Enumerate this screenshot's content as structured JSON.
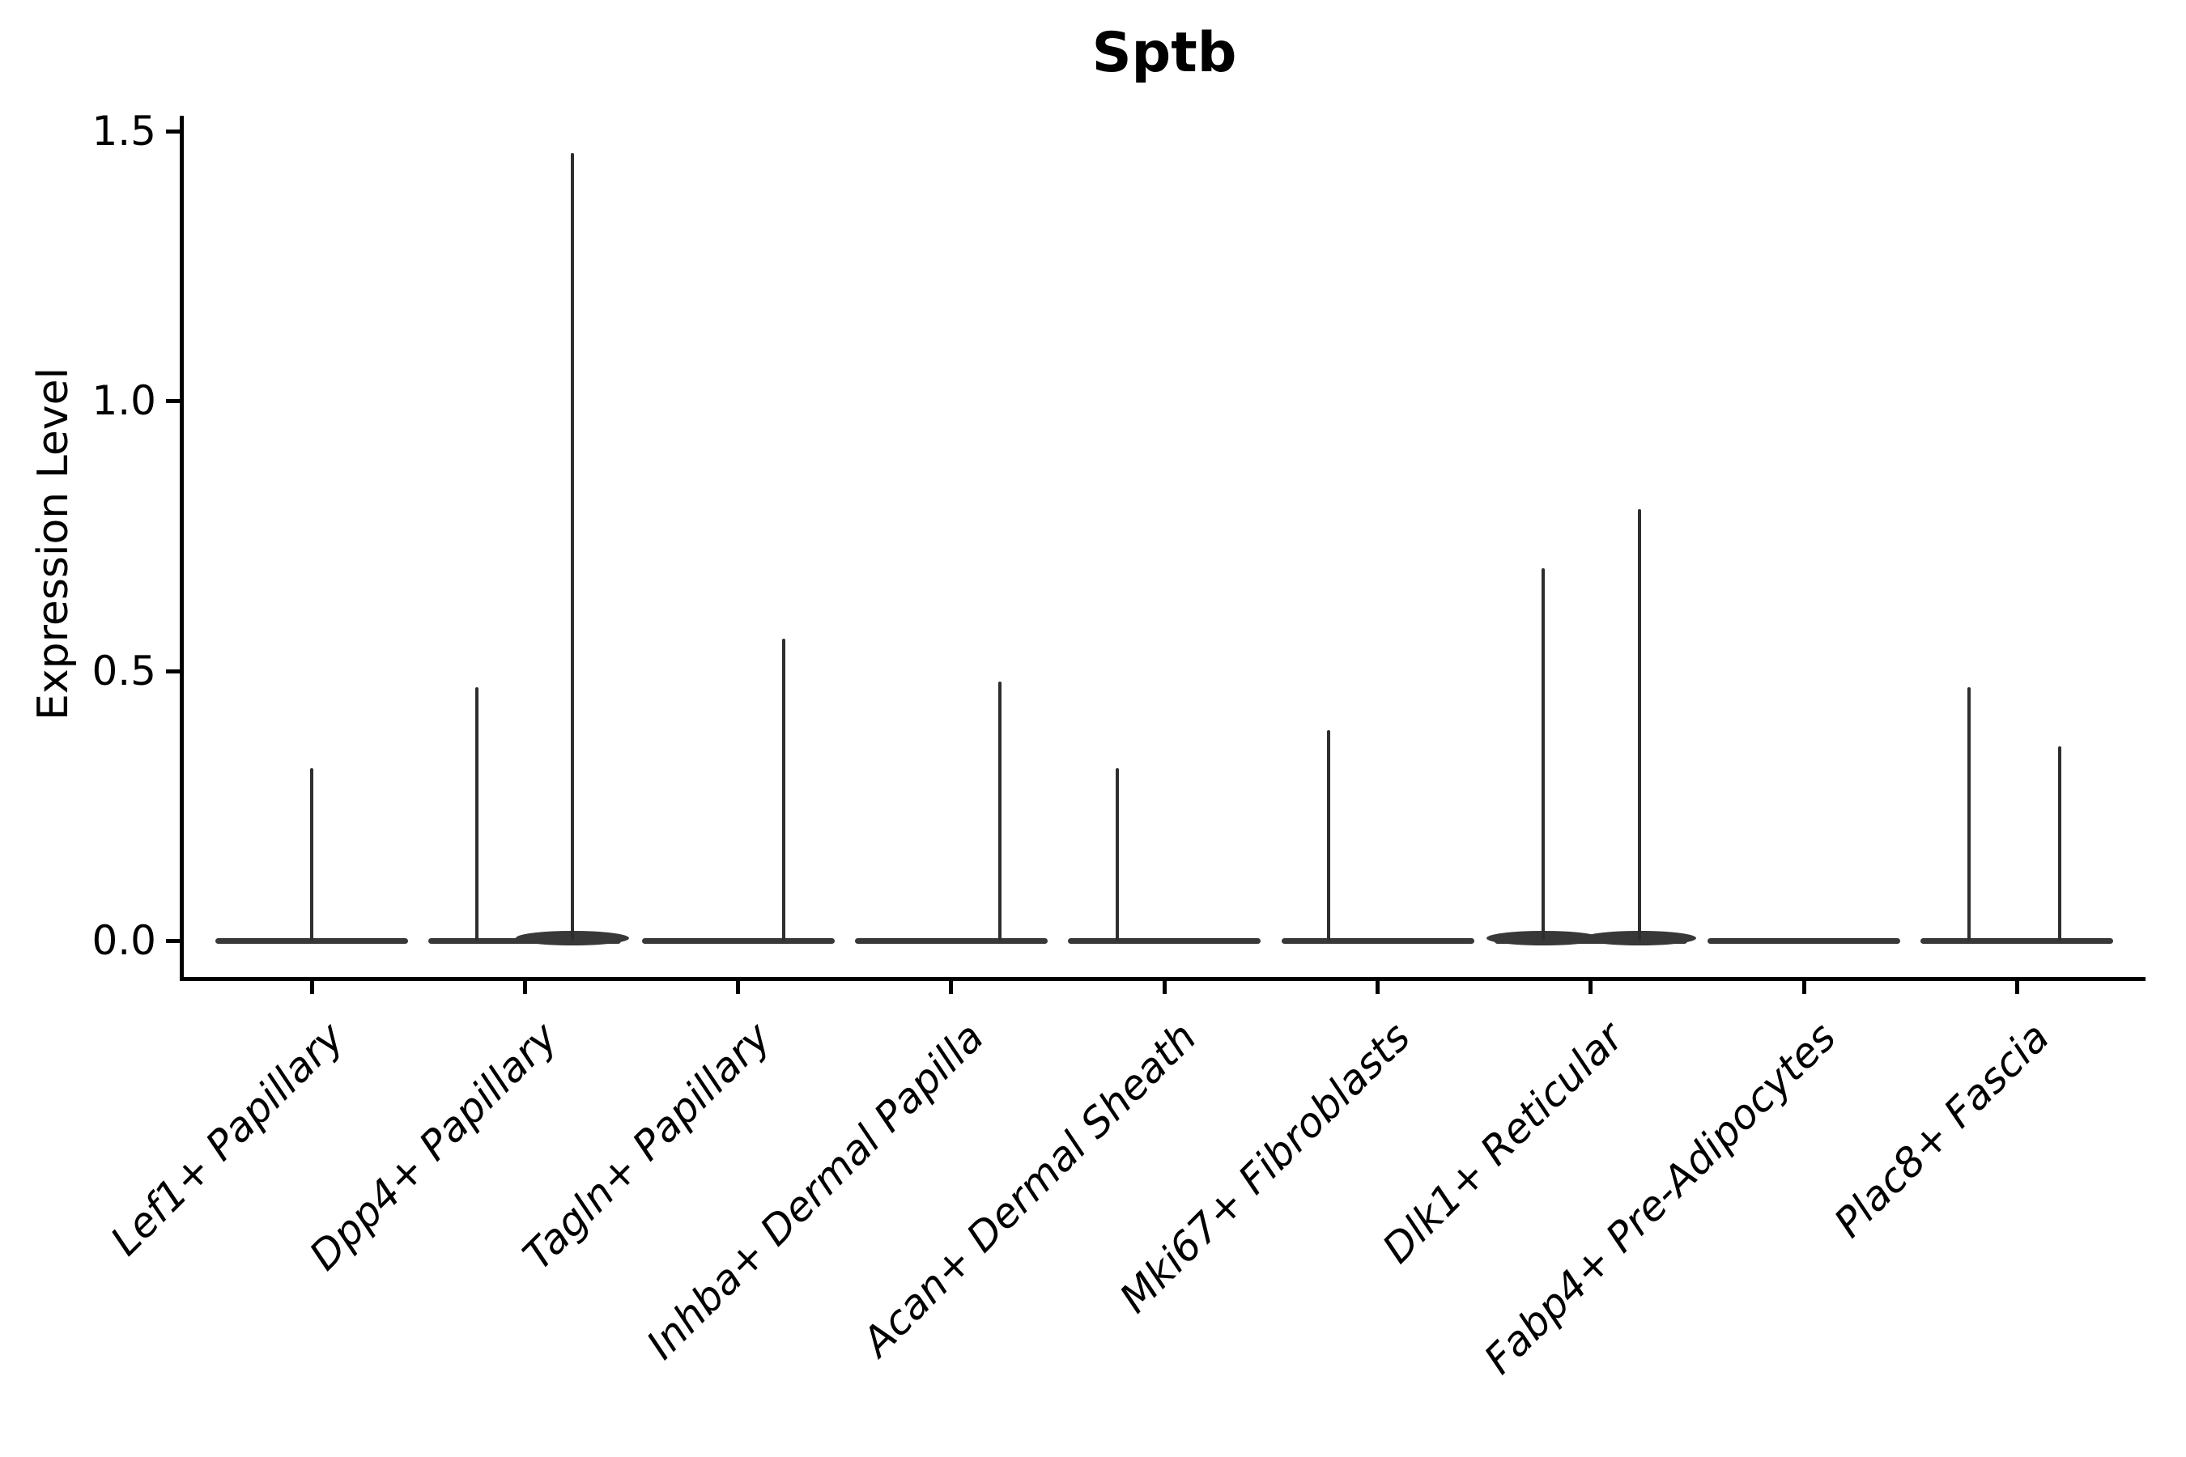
{
  "title": "Sptb",
  "axes": {
    "y_label": "Expression Level",
    "x_label": ""
  },
  "colors": {
    "background": "#ffffff",
    "axis": "#000000",
    "text": "#000000",
    "violin_spike": "#2e2e2e",
    "violin_base": "#383838"
  },
  "chart_data": {
    "type": "violin",
    "title": "Sptb",
    "ylabel": "Expression Level",
    "ylim": [
      0,
      1.55
    ],
    "grid": false,
    "legend": "none",
    "yticks": [
      {
        "value": 0.0,
        "label": "0.0"
      },
      {
        "value": 0.5,
        "label": "0.5"
      },
      {
        "value": 1.0,
        "label": "1.0"
      },
      {
        "value": 1.5,
        "label": "1.5"
      }
    ],
    "categories": [
      "Lef1+ Papillary",
      "Dpp4+ Papillary",
      "Tagln+ Papillary",
      "Inhba+ Dermal Papilla",
      "Acan+ Dermal Sheath",
      "Mki67+ Fibroblasts",
      "Dlk1+ Reticular",
      "Fabp4+ Pre-Adipocytes",
      "Plac8+ Fascia"
    ],
    "series": [
      {
        "name": "Lef1+ Papillary",
        "baseline_value": 0.0,
        "spikes": [
          {
            "pos": 0.0,
            "max": 0.32
          }
        ]
      },
      {
        "name": "Dpp4+ Papillary",
        "baseline_value": 0.0,
        "spikes": [
          {
            "pos": -0.224,
            "max": 0.47
          },
          {
            "pos": 0.224,
            "max": 1.46,
            "foot": true
          }
        ]
      },
      {
        "name": "Tagln+ Papillary",
        "baseline_value": 0.0,
        "spikes": [
          {
            "pos": 0.216,
            "max": 0.56
          }
        ]
      },
      {
        "name": "Inhba+ Dermal Papilla",
        "baseline_value": 0.0,
        "spikes": [
          {
            "pos": 0.228,
            "max": 0.48
          }
        ]
      },
      {
        "name": "Acan+ Dermal Sheath",
        "baseline_value": 0.0,
        "spikes": [
          {
            "pos": -0.22,
            "max": 0.32
          }
        ]
      },
      {
        "name": "Mki67+ Fibroblasts",
        "baseline_value": 0.0,
        "spikes": [
          {
            "pos": -0.228,
            "max": 0.39
          }
        ]
      },
      {
        "name": "Dlk1+ Reticular",
        "baseline_value": 0.0,
        "spikes": [
          {
            "pos": -0.224,
            "max": 0.69,
            "foot": true
          },
          {
            "pos": 0.228,
            "max": 0.8,
            "foot": true
          }
        ]
      },
      {
        "name": "Fabp4+ Pre-Adipocytes",
        "baseline_value": 0.0,
        "spikes": []
      },
      {
        "name": "Plac8+ Fascia",
        "baseline_value": 0.0,
        "spikes": [
          {
            "pos": -0.224,
            "max": 0.47
          },
          {
            "pos": 0.2,
            "max": 0.36
          }
        ]
      }
    ]
  }
}
